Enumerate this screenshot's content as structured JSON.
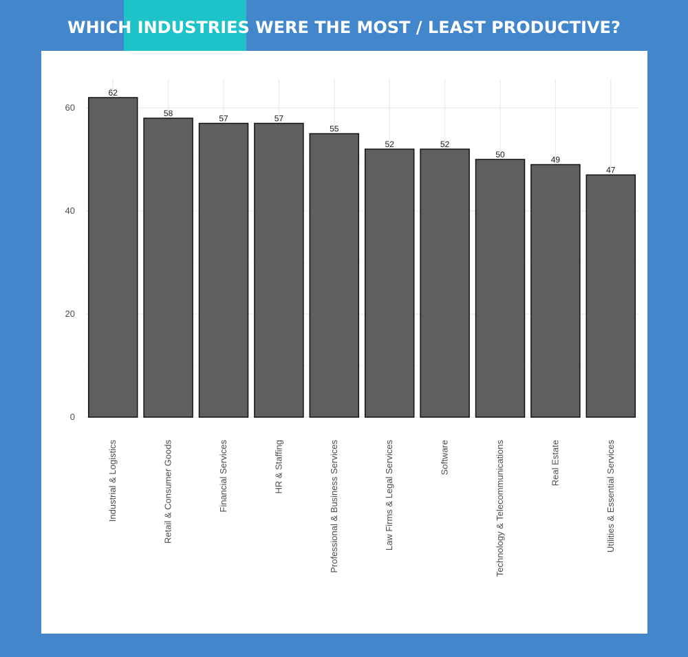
{
  "header": {
    "title": "WHICH INDUSTRIES WERE THE MOST / LEAST PRODUCTIVE?",
    "accent_color": "#1ec3c9",
    "background_color": "#4287cc"
  },
  "chart_data": {
    "type": "bar",
    "categories": [
      "Industrial & Logistics",
      "Retail & Consumer Goods",
      "Financial Services",
      "HR & Staffing",
      "Professional & Business Services",
      "Law Firms & Legal Services",
      "Software",
      "Technology & Telecommunications",
      "Real Estate",
      "Utilities & Essential Services"
    ],
    "values": [
      62,
      58,
      57,
      57,
      55,
      52,
      52,
      50,
      49,
      47
    ],
    "title": "",
    "xlabel": "",
    "ylabel": "",
    "ylim": [
      0,
      64
    ],
    "yticks": [
      0,
      20,
      40,
      60
    ],
    "grid": true,
    "bar_color": "#5f5f5f",
    "bar_edge_color": "#111111"
  }
}
